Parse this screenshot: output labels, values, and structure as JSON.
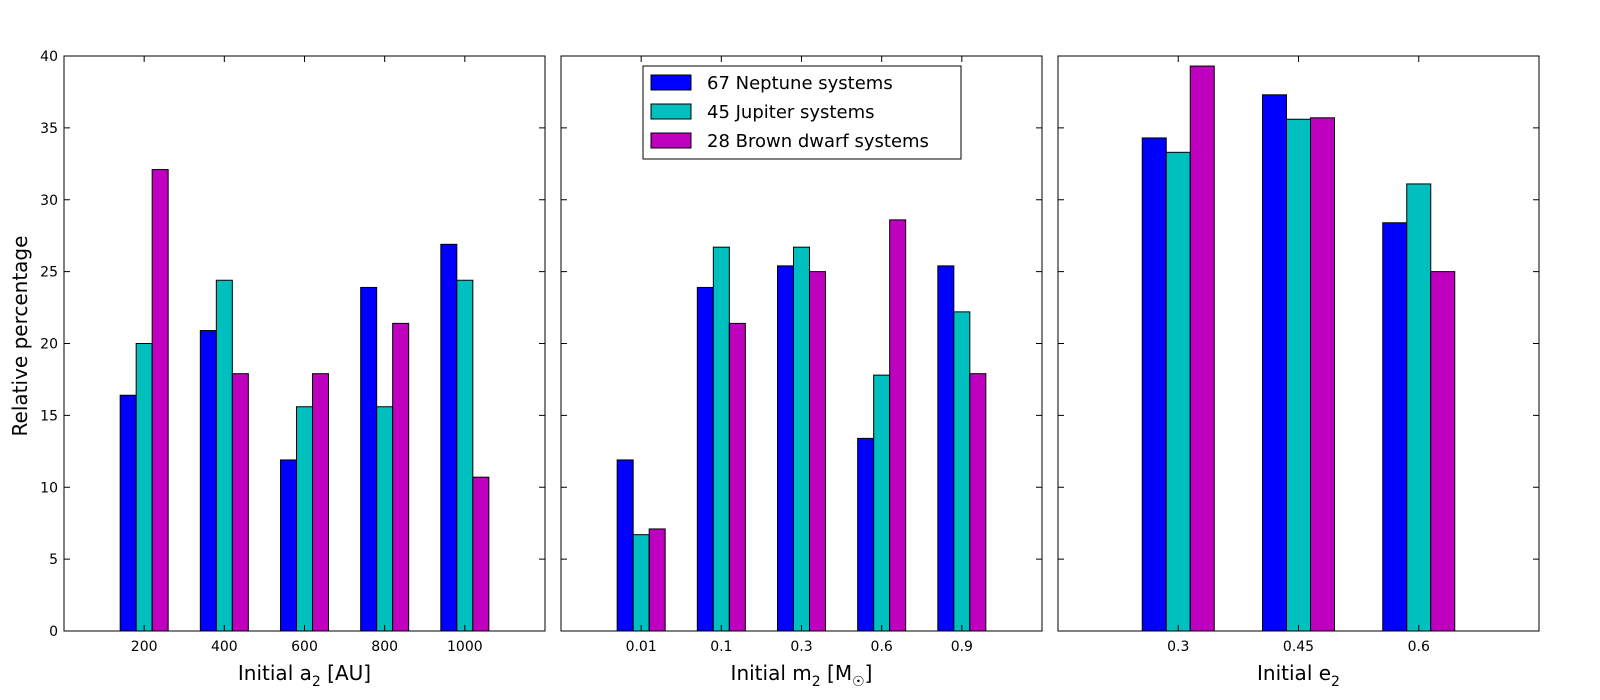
{
  "ylabel": "Relative percentage",
  "series": [
    {
      "name": "67 Neptune systems",
      "color": "#0000ff"
    },
    {
      "name": "45 Jupiter systems",
      "color": "#00bfbf"
    },
    {
      "name": "28 Brown dwarf systems",
      "color": "#bf00bf"
    }
  ],
  "chart_data": [
    {
      "type": "bar",
      "xlabel": "Initial a",
      "xlabel_sub": "2",
      "xlabel_suffix": " [AU]",
      "categories": [
        "200",
        "400",
        "600",
        "800",
        "1000"
      ],
      "series": [
        {
          "name": "67 Neptune systems",
          "values": [
            16.4,
            20.9,
            11.9,
            23.9,
            26.9
          ]
        },
        {
          "name": "45 Jupiter systems",
          "values": [
            20.0,
            24.4,
            15.6,
            15.6,
            24.4
          ]
        },
        {
          "name": "28 Brown dwarf systems",
          "values": [
            32.1,
            17.9,
            17.9,
            21.4,
            10.7
          ]
        }
      ],
      "ylim": [
        0,
        40
      ],
      "yticks": [
        0,
        5,
        10,
        15,
        20,
        25,
        30,
        35,
        40
      ],
      "legend": "none"
    },
    {
      "type": "bar",
      "xlabel": "Initial m",
      "xlabel_sub": "2",
      "xlabel_suffix": " [M",
      "xlabel_sub2": "☉",
      "xlabel_end": "]",
      "categories": [
        "0.01",
        "0.1",
        "0.3",
        "0.6",
        "0.9"
      ],
      "series": [
        {
          "name": "67 Neptune systems",
          "values": [
            11.9,
            23.9,
            25.4,
            13.4,
            25.4
          ]
        },
        {
          "name": "45 Jupiter systems",
          "values": [
            6.7,
            26.7,
            26.7,
            17.8,
            22.2
          ]
        },
        {
          "name": "28 Brown dwarf systems",
          "values": [
            7.1,
            21.4,
            25.0,
            28.6,
            17.9
          ]
        }
      ],
      "ylim": [
        0,
        40
      ],
      "legend": "top-center"
    },
    {
      "type": "bar",
      "xlabel": "Initial e",
      "xlabel_sub": "2",
      "xlabel_suffix": "",
      "categories": [
        "0.3",
        "0.45",
        "0.6"
      ],
      "series": [
        {
          "name": "67 Neptune systems",
          "values": [
            34.3,
            37.3,
            28.4
          ]
        },
        {
          "name": "45 Jupiter systems",
          "values": [
            33.3,
            35.6,
            31.1
          ]
        },
        {
          "name": "28 Brown dwarf systems",
          "values": [
            39.3,
            35.7,
            25.0
          ]
        }
      ],
      "ylim": [
        0,
        40
      ],
      "legend": "none"
    }
  ]
}
